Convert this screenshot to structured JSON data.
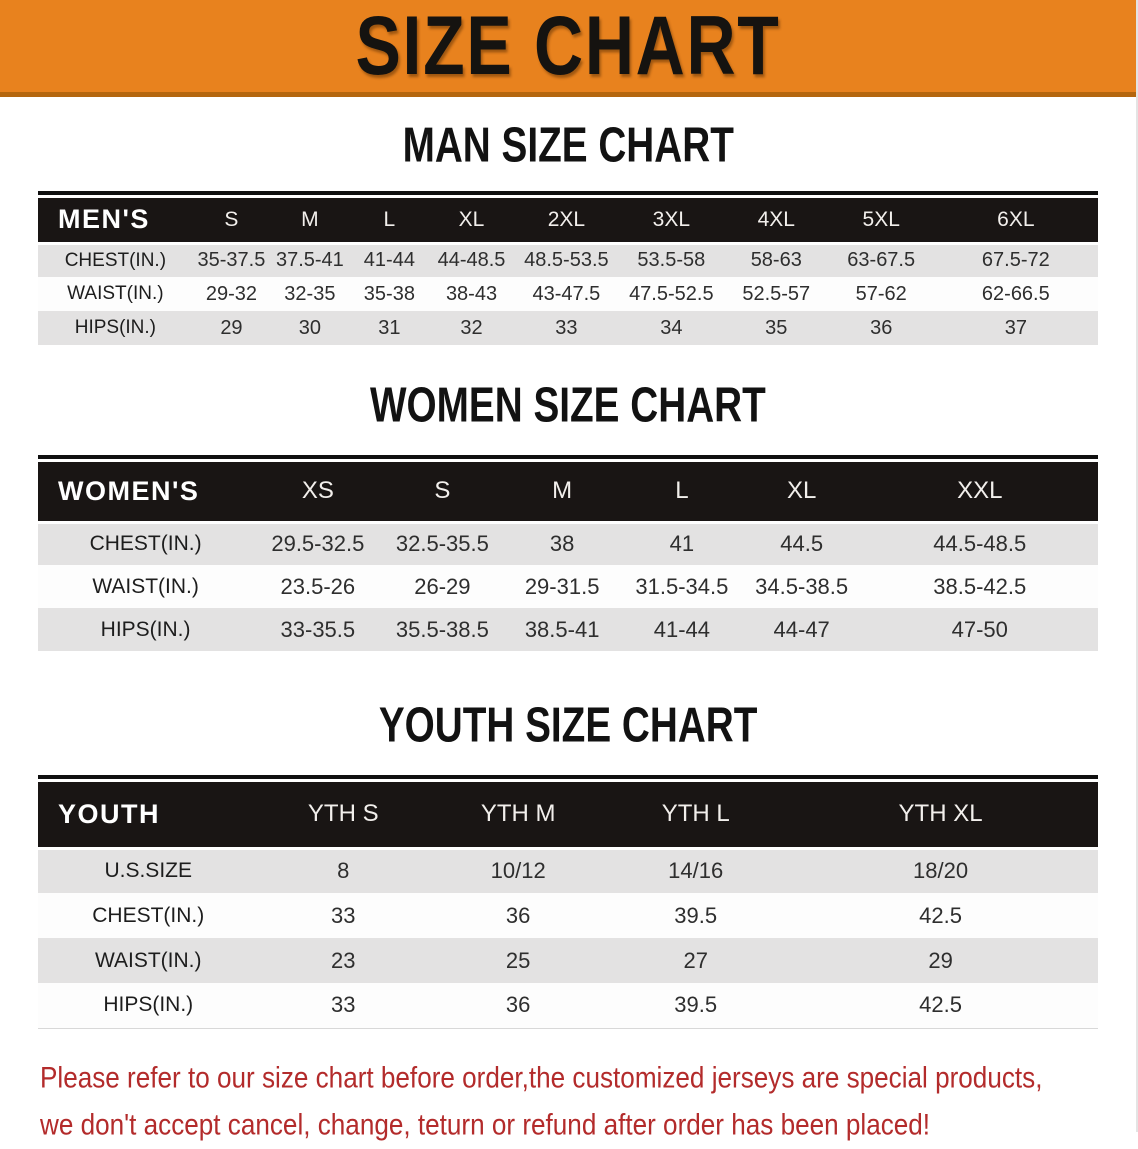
{
  "banner": {
    "title": "SIZE CHART",
    "bg_color": "#E8821E",
    "strip_color": "#B4660E"
  },
  "sections": [
    {
      "heading": "MAN SIZE CHART",
      "group_label": "MEN'S",
      "columns": [
        "S",
        "M",
        "L",
        "XL",
        "2XL",
        "3XL",
        "4XL",
        "5XL",
        "6XL"
      ],
      "rows": [
        {
          "label": "CHEST(IN.)",
          "values": [
            "35-37.5",
            "37.5-41",
            "41-44",
            "44-48.5",
            "48.5-53.5",
            "53.5-58",
            "58-63",
            "63-67.5",
            "67.5-72"
          ]
        },
        {
          "label": "WAIST(IN.)",
          "values": [
            "29-32",
            "32-35",
            "35-38",
            "38-43",
            "43-47.5",
            "47.5-52.5",
            "52.5-57",
            "57-62",
            "62-66.5"
          ]
        },
        {
          "label": "HIPS(IN.)",
          "values": [
            "29",
            "30",
            "31",
            "32",
            "33",
            "34",
            "35",
            "36",
            "37"
          ]
        }
      ]
    },
    {
      "heading": "WOMEN SIZE CHART",
      "group_label": "WOMEN'S",
      "columns": [
        "XS",
        "S",
        "M",
        "L",
        "XL",
        "XXL"
      ],
      "rows": [
        {
          "label": "CHEST(IN.)",
          "values": [
            "29.5-32.5",
            "32.5-35.5",
            "38",
            "41",
            "44.5",
            "44.5-48.5"
          ]
        },
        {
          "label": "WAIST(IN.)",
          "values": [
            "23.5-26",
            "26-29",
            "29-31.5",
            "31.5-34.5",
            "34.5-38.5",
            "38.5-42.5"
          ]
        },
        {
          "label": "HIPS(IN.)",
          "values": [
            "33-35.5",
            "35.5-38.5",
            "38.5-41",
            "41-44",
            "44-47",
            "47-50"
          ]
        }
      ]
    },
    {
      "heading": "YOUTH SIZE CHART",
      "group_label": "YOUTH",
      "columns": [
        "YTH S",
        "YTH M",
        "YTH L",
        "YTH XL"
      ],
      "rows": [
        {
          "label": "U.S.SIZE",
          "values": [
            "8",
            "10/12",
            "14/16",
            "18/20"
          ]
        },
        {
          "label": "CHEST(IN.)",
          "values": [
            "33",
            "36",
            "39.5",
            "42.5"
          ]
        },
        {
          "label": "WAIST(IN.)",
          "values": [
            "23",
            "25",
            "27",
            "29"
          ]
        },
        {
          "label": "HIPS(IN.)",
          "values": [
            "33",
            "36",
            "39.5",
            "42.5"
          ]
        }
      ]
    }
  ],
  "disclaimer": {
    "line1": "Please refer to our size chart before order,the customized jerseys are special products,",
    "line2": "we don't accept cancel, change, teturn or refund after order has been placed!",
    "color": "#B32B2B"
  },
  "colors": {
    "header_bar": "#191514",
    "row_alt": "#E3E2E2",
    "row_white": "#FDFDFD"
  }
}
